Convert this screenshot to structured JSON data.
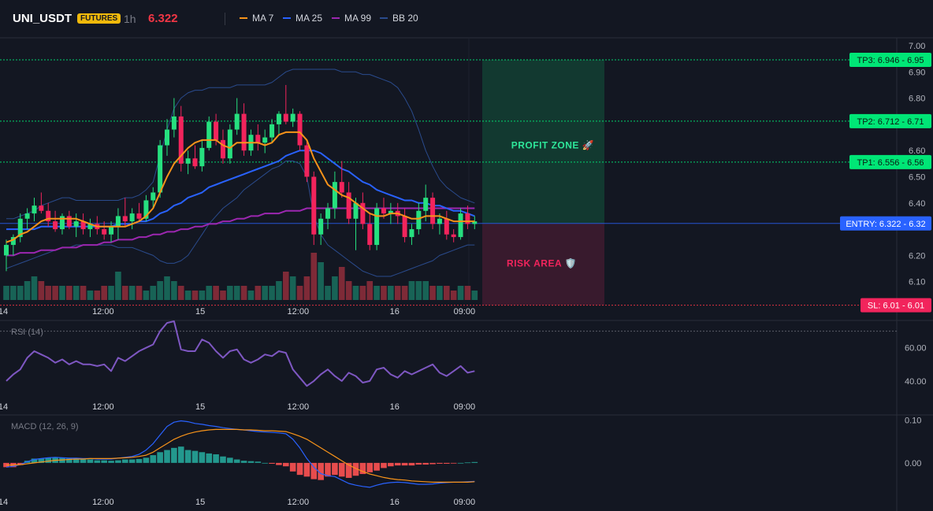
{
  "header": {
    "symbol": "UNI_USDT",
    "badge": "FUTURES",
    "timeframe": "1h",
    "price": "6.322",
    "legend": [
      {
        "label": "MA 7",
        "color": "#f7931a"
      },
      {
        "label": "MA 25",
        "color": "#2962ff"
      },
      {
        "label": "MA 99",
        "color": "#9c27b0"
      },
      {
        "label": "BB 20",
        "color": "#2a4b8d"
      }
    ]
  },
  "colors": {
    "up": "#089981",
    "down": "#f23645",
    "candle_up": "#26e07f",
    "candle_down": "#f2245c"
  },
  "chart_data": [
    {
      "type": "candlestick",
      "title": "UNI_USDT 1h",
      "x_ticks": [
        "14",
        "12:00",
        "15",
        "12:00",
        "16",
        "09:00"
      ],
      "y_ticks": [
        "7.00",
        "6.90",
        "6.80",
        "6.60",
        "6.50",
        "6.40",
        "6.20",
        "6.10"
      ],
      "ylim": [
        6.03,
        7.03
      ],
      "candles": [
        [
          6.2,
          6.26,
          6.14,
          6.24
        ],
        [
          6.24,
          6.28,
          6.2,
          6.27
        ],
        [
          6.27,
          6.36,
          6.25,
          6.34
        ],
        [
          6.34,
          6.38,
          6.3,
          6.36
        ],
        [
          6.36,
          6.42,
          6.33,
          6.39
        ],
        [
          6.39,
          6.44,
          6.36,
          6.37
        ],
        [
          6.37,
          6.4,
          6.31,
          6.33
        ],
        [
          6.33,
          6.37,
          6.29,
          6.3
        ],
        [
          6.3,
          6.36,
          6.28,
          6.35
        ],
        [
          6.35,
          6.37,
          6.3,
          6.31
        ],
        [
          6.31,
          6.36,
          6.27,
          6.33
        ],
        [
          6.33,
          6.36,
          6.28,
          6.3
        ],
        [
          6.3,
          6.34,
          6.27,
          6.32
        ],
        [
          6.32,
          6.35,
          6.28,
          6.3
        ],
        [
          6.3,
          6.33,
          6.26,
          6.28
        ],
        [
          6.28,
          6.33,
          6.25,
          6.31
        ],
        [
          6.31,
          6.38,
          6.26,
          6.35
        ],
        [
          6.35,
          6.42,
          6.31,
          6.33
        ],
        [
          6.33,
          6.38,
          6.3,
          6.36
        ],
        [
          6.36,
          6.4,
          6.33,
          6.34
        ],
        [
          6.34,
          6.43,
          6.33,
          6.41
        ],
        [
          6.41,
          6.46,
          6.38,
          6.44
        ],
        [
          6.44,
          6.64,
          6.42,
          6.62
        ],
        [
          6.62,
          6.72,
          6.58,
          6.68
        ],
        [
          6.68,
          6.8,
          6.65,
          6.73
        ],
        [
          6.73,
          6.77,
          6.52,
          6.55
        ],
        [
          6.55,
          6.6,
          6.51,
          6.57
        ],
        [
          6.57,
          6.62,
          6.53,
          6.54
        ],
        [
          6.54,
          6.64,
          6.52,
          6.61
        ],
        [
          6.61,
          6.73,
          6.6,
          6.71
        ],
        [
          6.71,
          6.74,
          6.62,
          6.64
        ],
        [
          6.64,
          6.68,
          6.55,
          6.57
        ],
        [
          6.57,
          6.7,
          6.55,
          6.68
        ],
        [
          6.68,
          6.8,
          6.66,
          6.74
        ],
        [
          6.74,
          6.78,
          6.58,
          6.6
        ],
        [
          6.6,
          6.68,
          6.58,
          6.66
        ],
        [
          6.66,
          6.7,
          6.6,
          6.63
        ],
        [
          6.63,
          6.68,
          6.59,
          6.65
        ],
        [
          6.65,
          6.72,
          6.63,
          6.7
        ],
        [
          6.7,
          6.75,
          6.66,
          6.74
        ],
        [
          6.74,
          6.85,
          6.7,
          6.71
        ],
        [
          6.71,
          6.76,
          6.69,
          6.74
        ],
        [
          6.74,
          6.75,
          6.6,
          6.62
        ],
        [
          6.62,
          6.64,
          6.48,
          6.5
        ],
        [
          6.5,
          6.52,
          6.24,
          6.28
        ],
        [
          6.28,
          6.36,
          6.24,
          6.34
        ],
        [
          6.34,
          6.4,
          6.3,
          6.38
        ],
        [
          6.38,
          6.52,
          6.34,
          6.48
        ],
        [
          6.48,
          6.56,
          6.42,
          6.44
        ],
        [
          6.44,
          6.48,
          6.32,
          6.34
        ],
        [
          6.34,
          6.42,
          6.22,
          6.4
        ],
        [
          6.4,
          6.44,
          6.3,
          6.32
        ],
        [
          6.32,
          6.36,
          6.22,
          6.24
        ],
        [
          6.24,
          6.4,
          6.22,
          6.38
        ],
        [
          6.38,
          6.42,
          6.34,
          6.36
        ],
        [
          6.36,
          6.4,
          6.32,
          6.37
        ],
        [
          6.37,
          6.4,
          6.32,
          6.35
        ],
        [
          6.35,
          6.38,
          6.25,
          6.27
        ],
        [
          6.27,
          6.32,
          6.24,
          6.3
        ],
        [
          6.3,
          6.4,
          6.28,
          6.37
        ],
        [
          6.37,
          6.47,
          6.33,
          6.42
        ],
        [
          6.42,
          6.44,
          6.3,
          6.32
        ],
        [
          6.32,
          6.36,
          6.28,
          6.34
        ],
        [
          6.34,
          6.37,
          6.26,
          6.28
        ],
        [
          6.28,
          6.3,
          6.25,
          6.27
        ],
        [
          6.27,
          6.38,
          6.26,
          6.36
        ],
        [
          6.36,
          6.39,
          6.3,
          6.32
        ],
        [
          6.32,
          6.35,
          6.3,
          6.33
        ]
      ],
      "ma7": [
        6.25,
        6.26,
        6.28,
        6.29,
        6.31,
        6.33,
        6.34,
        6.34,
        6.34,
        6.34,
        6.34,
        6.33,
        6.32,
        6.31,
        6.31,
        6.31,
        6.31,
        6.31,
        6.32,
        6.33,
        6.35,
        6.38,
        6.44,
        6.5,
        6.55,
        6.58,
        6.61,
        6.63,
        6.64,
        6.64,
        6.64,
        6.62,
        6.61,
        6.63,
        6.63,
        6.63,
        6.63,
        6.62,
        6.63,
        6.66,
        6.67,
        6.67,
        6.67,
        6.64,
        6.57,
        6.52,
        6.47,
        6.45,
        6.43,
        6.42,
        6.4,
        6.38,
        6.36,
        6.35,
        6.35,
        6.36,
        6.36,
        6.35,
        6.34,
        6.34,
        6.35,
        6.35,
        6.35,
        6.34,
        6.33,
        6.33,
        6.33,
        6.33
      ],
      "ma25": [
        6.3,
        6.3,
        6.3,
        6.3,
        6.3,
        6.31,
        6.31,
        6.31,
        6.31,
        6.31,
        6.31,
        6.31,
        6.31,
        6.31,
        6.31,
        6.31,
        6.32,
        6.32,
        6.32,
        6.33,
        6.33,
        6.34,
        6.36,
        6.37,
        6.39,
        6.4,
        6.42,
        6.43,
        6.44,
        6.46,
        6.47,
        6.48,
        6.49,
        6.5,
        6.51,
        6.52,
        6.53,
        6.54,
        6.55,
        6.56,
        6.58,
        6.59,
        6.6,
        6.6,
        6.6,
        6.59,
        6.57,
        6.55,
        6.53,
        6.52,
        6.5,
        6.48,
        6.47,
        6.45,
        6.44,
        6.43,
        6.42,
        6.41,
        6.41,
        6.4,
        6.4,
        6.39,
        6.39,
        6.38,
        6.37,
        6.37,
        6.36,
        6.35
      ],
      "ma99": [
        6.2,
        6.2,
        6.21,
        6.21,
        6.21,
        6.22,
        6.22,
        6.22,
        6.23,
        6.23,
        6.23,
        6.24,
        6.24,
        6.24,
        6.25,
        6.25,
        6.26,
        6.26,
        6.26,
        6.27,
        6.27,
        6.28,
        6.28,
        6.29,
        6.29,
        6.3,
        6.3,
        6.31,
        6.31,
        6.32,
        6.32,
        6.33,
        6.33,
        6.34,
        6.34,
        6.35,
        6.35,
        6.36,
        6.36,
        6.36,
        6.37,
        6.37,
        6.37,
        6.38,
        6.38,
        6.38,
        6.38,
        6.38,
        6.38,
        6.38,
        6.38,
        6.38,
        6.38,
        6.38,
        6.38,
        6.38,
        6.38,
        6.38,
        6.38,
        6.38,
        6.38,
        6.38,
        6.38,
        6.38,
        6.38,
        6.38,
        6.38,
        6.38
      ],
      "bb_upper": [
        6.34,
        6.34,
        6.35,
        6.36,
        6.37,
        6.39,
        6.4,
        6.41,
        6.42,
        6.42,
        6.41,
        6.41,
        6.41,
        6.41,
        6.41,
        6.41,
        6.41,
        6.42,
        6.42,
        6.43,
        6.45,
        6.48,
        6.58,
        6.68,
        6.76,
        6.8,
        6.82,
        6.83,
        6.83,
        6.84,
        6.84,
        6.84,
        6.84,
        6.85,
        6.85,
        6.85,
        6.85,
        6.85,
        6.86,
        6.88,
        6.9,
        6.91,
        6.91,
        6.91,
        6.91,
        6.91,
        6.91,
        6.91,
        6.9,
        6.9,
        6.9,
        6.89,
        6.89,
        6.88,
        6.87,
        6.86,
        6.84,
        6.8,
        6.75,
        6.68,
        6.6,
        6.54,
        6.49,
        6.46,
        6.44,
        6.42,
        6.41,
        6.4
      ],
      "bb_lower": [
        6.15,
        6.16,
        6.17,
        6.18,
        6.19,
        6.2,
        6.21,
        6.22,
        6.23,
        6.23,
        6.24,
        6.24,
        6.24,
        6.24,
        6.24,
        6.24,
        6.23,
        6.23,
        6.23,
        6.22,
        6.21,
        6.2,
        6.18,
        6.17,
        6.17,
        6.18,
        6.2,
        6.24,
        6.28,
        6.32,
        6.35,
        6.38,
        6.4,
        6.42,
        6.45,
        6.47,
        6.49,
        6.51,
        6.53,
        6.54,
        6.56,
        6.56,
        6.55,
        6.5,
        6.35,
        6.28,
        6.24,
        6.22,
        6.2,
        6.18,
        6.16,
        6.14,
        6.13,
        6.12,
        6.12,
        6.12,
        6.13,
        6.14,
        6.15,
        6.16,
        6.17,
        6.18,
        6.2,
        6.21,
        6.22,
        6.23,
        6.24,
        6.24
      ],
      "volume": [
        0.3,
        0.3,
        0.3,
        0.4,
        0.5,
        0.4,
        0.3,
        0.3,
        0.3,
        0.3,
        0.3,
        0.3,
        0.2,
        0.2,
        0.3,
        0.3,
        0.6,
        0.3,
        0.3,
        0.3,
        0.2,
        0.3,
        0.4,
        0.5,
        0.4,
        0.3,
        0.2,
        0.2,
        0.2,
        0.3,
        0.3,
        0.2,
        0.3,
        0.3,
        0.3,
        0.2,
        0.3,
        0.3,
        0.3,
        0.4,
        0.6,
        0.5,
        0.3,
        0.5,
        1.0,
        0.8,
        0.3,
        0.5,
        0.7,
        0.4,
        0.3,
        0.3,
        0.4,
        0.3,
        0.3,
        0.3,
        0.3,
        0.3,
        0.4,
        0.4,
        0.4,
        0.3,
        0.3,
        0.3,
        0.2,
        0.3,
        0.3,
        0.2
      ],
      "levels": [
        {
          "label": "TP3: 6.946 - 6.95",
          "value": 6.946,
          "color": "#00e676"
        },
        {
          "label": "TP2: 6.712 - 6.71",
          "value": 6.712,
          "color": "#00e676"
        },
        {
          "label": "TP1: 6.556 - 6.56",
          "value": 6.556,
          "color": "#00e676"
        },
        {
          "label": "ENTRY: 6.322 - 6.32",
          "value": 6.322,
          "color": "#2962ff"
        },
        {
          "label": "SL: 6.01 - 6.01",
          "value": 6.01,
          "color": "#f23645"
        }
      ],
      "zones": [
        {
          "label": "PROFIT ZONE 🚀",
          "from": 6.322,
          "to": 6.946
        },
        {
          "label": "RISK AREA 🛡️",
          "from": 6.01,
          "to": 6.322
        }
      ]
    },
    {
      "type": "line",
      "title": "RSI (14)",
      "y_ticks": [
        "60.00",
        "40.00"
      ],
      "ylim": [
        30,
        76
      ],
      "overbought": 70,
      "values": [
        40,
        44,
        47,
        54,
        58,
        56,
        54,
        51,
        53,
        50,
        52,
        50,
        50,
        49,
        50,
        46,
        54,
        52,
        55,
        58,
        60,
        62,
        70,
        75,
        76,
        59,
        58,
        58,
        65,
        63,
        58,
        54,
        58,
        59,
        53,
        51,
        53,
        56,
        55,
        58,
        57,
        47,
        42,
        37,
        40,
        44,
        47,
        43,
        40,
        45,
        43,
        39,
        40,
        47,
        48,
        44,
        42,
        46,
        44,
        46,
        48,
        50,
        45,
        43,
        46,
        49,
        45,
        46
      ],
      "x_ticks": [
        "14",
        "12:00",
        "15",
        "12:00",
        "16",
        "09:00"
      ]
    },
    {
      "type": "bar",
      "title": "MACD (12, 26, 9)",
      "y_ticks": [
        "0.10",
        "0.00"
      ],
      "ylim": [
        -0.07,
        0.11
      ],
      "histogram": [
        -0.01,
        -0.01,
        -0.005,
        0.005,
        0.01,
        0.01,
        0.012,
        0.013,
        0.012,
        0.01,
        0.01,
        0.008,
        0.008,
        0.006,
        0.006,
        0.005,
        0.006,
        0.008,
        0.008,
        0.009,
        0.012,
        0.018,
        0.025,
        0.03,
        0.035,
        0.038,
        0.03,
        0.028,
        0.025,
        0.022,
        0.02,
        0.015,
        0.012,
        0.008,
        0.005,
        0.004,
        0.003,
        0.0,
        -0.002,
        -0.005,
        -0.008,
        -0.02,
        -0.028,
        -0.032,
        -0.038,
        -0.04,
        -0.032,
        -0.028,
        -0.032,
        -0.035,
        -0.03,
        -0.026,
        -0.022,
        -0.018,
        -0.012,
        -0.008,
        -0.006,
        -0.006,
        -0.006,
        -0.004,
        -0.004,
        -0.003,
        -0.002,
        -0.002,
        -0.001,
        0.0,
        0.001,
        0.002
      ],
      "macd": [
        -0.01,
        -0.008,
        -0.004,
        0.003,
        0.008,
        0.01,
        0.012,
        0.013,
        0.012,
        0.011,
        0.011,
        0.01,
        0.01,
        0.009,
        0.009,
        0.009,
        0.011,
        0.013,
        0.015,
        0.02,
        0.03,
        0.045,
        0.065,
        0.085,
        0.095,
        0.098,
        0.096,
        0.092,
        0.09,
        0.087,
        0.085,
        0.082,
        0.08,
        0.078,
        0.077,
        0.075,
        0.073,
        0.072,
        0.071,
        0.07,
        0.068,
        0.055,
        0.035,
        0.01,
        -0.01,
        -0.025,
        -0.03,
        -0.032,
        -0.04,
        -0.048,
        -0.052,
        -0.055,
        -0.057,
        -0.052,
        -0.048,
        -0.046,
        -0.045,
        -0.046,
        -0.048,
        -0.05,
        -0.05,
        -0.049,
        -0.047,
        -0.046,
        -0.045,
        -0.045,
        -0.044,
        -0.043
      ],
      "signal": [
        -0.005,
        -0.005,
        -0.004,
        -0.002,
        0.0,
        0.002,
        0.004,
        0.006,
        0.007,
        0.008,
        0.009,
        0.009,
        0.01,
        0.01,
        0.01,
        0.01,
        0.011,
        0.012,
        0.013,
        0.015,
        0.018,
        0.025,
        0.035,
        0.045,
        0.055,
        0.062,
        0.068,
        0.072,
        0.075,
        0.077,
        0.078,
        0.078,
        0.078,
        0.078,
        0.077,
        0.077,
        0.076,
        0.075,
        0.075,
        0.074,
        0.073,
        0.068,
        0.062,
        0.055,
        0.045,
        0.035,
        0.025,
        0.015,
        0.005,
        -0.005,
        -0.013,
        -0.02,
        -0.026,
        -0.03,
        -0.034,
        -0.037,
        -0.039,
        -0.04,
        -0.042,
        -0.043,
        -0.044,
        -0.045,
        -0.045,
        -0.045,
        -0.045,
        -0.045,
        -0.045,
        -0.044
      ],
      "x_ticks": [
        "14",
        "12:00",
        "15",
        "12:00",
        "16",
        "09:00"
      ]
    }
  ]
}
